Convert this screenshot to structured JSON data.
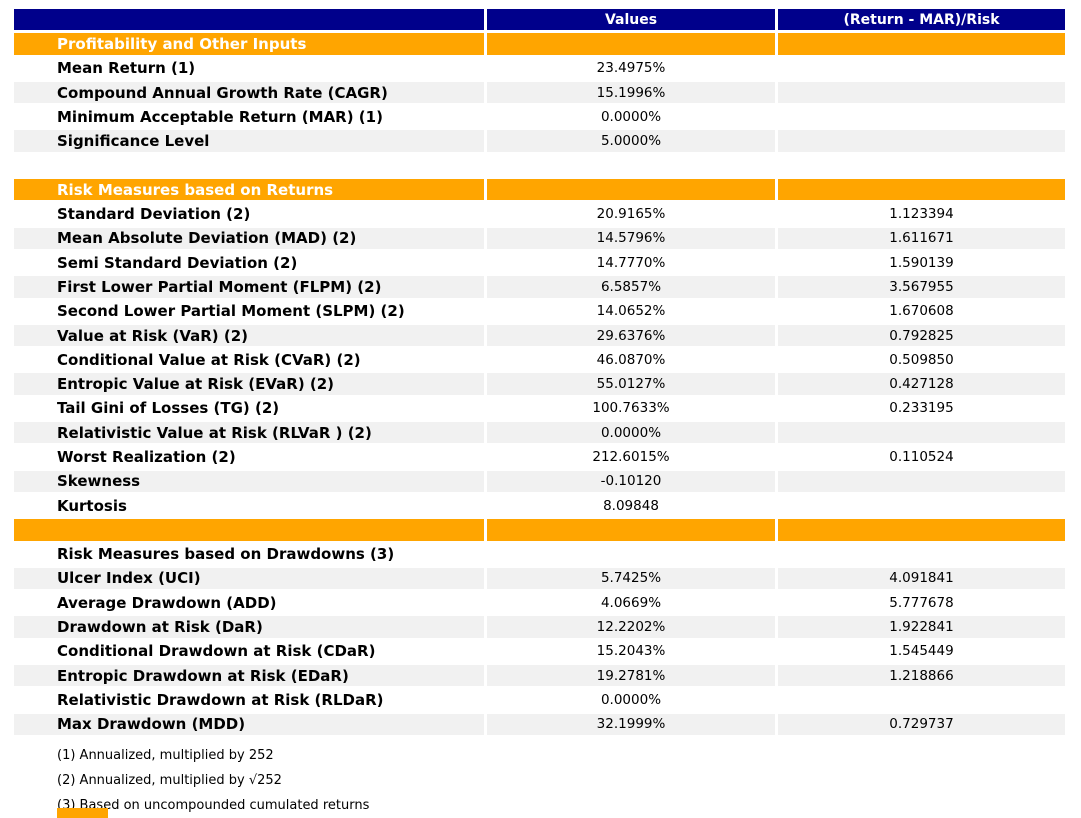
{
  "chart_data": {
    "type": "table",
    "columns": [
      "",
      "Values",
      "(Return - MAR)/Risk"
    ],
    "rows": [
      {
        "kind": "section",
        "label": "Profitability and Other Inputs",
        "value": "",
        "ratio": ""
      },
      {
        "kind": "plain",
        "label": "Mean Return (1)",
        "value": "23.4975%",
        "ratio": ""
      },
      {
        "kind": "shade",
        "label": "Compound Annual Growth Rate (CAGR)",
        "value": "15.1996%",
        "ratio": ""
      },
      {
        "kind": "plain",
        "label": "Minimum Acceptable Return (MAR) (1)",
        "value": "0.0000%",
        "ratio": ""
      },
      {
        "kind": "shade",
        "label": "Significance Level",
        "value": "5.0000%",
        "ratio": ""
      },
      {
        "kind": "spacer",
        "label": "",
        "value": "",
        "ratio": ""
      },
      {
        "kind": "section",
        "label": "Risk Measures based on Returns",
        "value": "",
        "ratio": ""
      },
      {
        "kind": "plain",
        "label": "Standard Deviation (2)",
        "value": "20.9165%",
        "ratio": "1.123394"
      },
      {
        "kind": "shade",
        "label": "Mean Absolute Deviation (MAD) (2)",
        "value": "14.5796%",
        "ratio": "1.611671"
      },
      {
        "kind": "plain",
        "label": "Semi Standard Deviation (2)",
        "value": "14.7770%",
        "ratio": "1.590139"
      },
      {
        "kind": "shade",
        "label": "First Lower Partial Moment (FLPM) (2)",
        "value": "6.5857%",
        "ratio": "3.567955"
      },
      {
        "kind": "plain",
        "label": "Second Lower Partial Moment (SLPM) (2)",
        "value": "14.0652%",
        "ratio": "1.670608"
      },
      {
        "kind": "shade",
        "label": "Value at Risk (VaR) (2)",
        "value": "29.6376%",
        "ratio": "0.792825"
      },
      {
        "kind": "plain",
        "label": "Conditional Value at Risk (CVaR) (2)",
        "value": "46.0870%",
        "ratio": "0.509850"
      },
      {
        "kind": "shade",
        "label": "Entropic Value at Risk (EVaR) (2)",
        "value": "55.0127%",
        "ratio": "0.427128"
      },
      {
        "kind": "plain",
        "label": "Tail Gini of Losses (TG) (2)",
        "value": "100.7633%",
        "ratio": "0.233195"
      },
      {
        "kind": "shade",
        "label": "Relativistic Value at Risk (RLVaR ) (2)",
        "value": "0.0000%",
        "ratio": ""
      },
      {
        "kind": "plain",
        "label": "Worst Realization (2)",
        "value": "212.6015%",
        "ratio": "0.110524"
      },
      {
        "kind": "shade",
        "label": "Skewness",
        "value": "-0.10120",
        "ratio": ""
      },
      {
        "kind": "plain",
        "label": "Kurtosis",
        "value": "8.09848",
        "ratio": ""
      },
      {
        "kind": "section",
        "label": "",
        "value": "",
        "ratio": ""
      },
      {
        "kind": "subheader",
        "label": "Risk Measures based on Drawdowns (3)",
        "value": "",
        "ratio": ""
      },
      {
        "kind": "shade",
        "label": "Ulcer Index (UCI)",
        "value": "5.7425%",
        "ratio": "4.091841"
      },
      {
        "kind": "plain",
        "label": "Average Drawdown (ADD)",
        "value": "4.0669%",
        "ratio": "5.777678"
      },
      {
        "kind": "shade",
        "label": "Drawdown at Risk (DaR)",
        "value": "12.2202%",
        "ratio": "1.922841"
      },
      {
        "kind": "plain",
        "label": "Conditional Drawdown at Risk (CDaR)",
        "value": "15.2043%",
        "ratio": "1.545449"
      },
      {
        "kind": "shade",
        "label": "Entropic Drawdown at Risk (EDaR)",
        "value": "19.2781%",
        "ratio": "1.218866"
      },
      {
        "kind": "plain",
        "label": "Relativistic Drawdown at Risk (RLDaR)",
        "value": "0.0000%",
        "ratio": ""
      },
      {
        "kind": "shade",
        "label": "Max Drawdown (MDD)",
        "value": "32.1999%",
        "ratio": "0.729737"
      }
    ],
    "footnotes": [
      "(1) Annualized, multiplied by 252",
      "(2) Annualized, multiplied by √252",
      "(3) Based on uncompounded cumulated returns"
    ],
    "layout": {
      "legend": "none",
      "grid": "off"
    }
  },
  "colors": {
    "header_bg": "#00008B",
    "section_bg": "#FFA500",
    "alt_row_bg": "#F1F1F1",
    "header_text": "#FFFFFF",
    "body_text": "#000000"
  }
}
